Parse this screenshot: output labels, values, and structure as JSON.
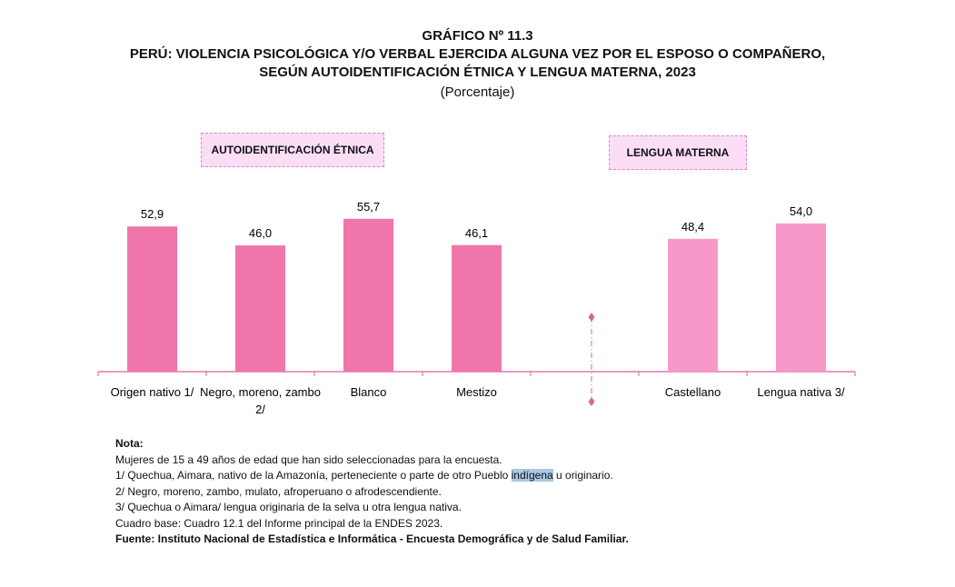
{
  "chart_data": {
    "type": "bar",
    "title_lines": [
      "GRÁFICO Nº 11.3",
      "PERÚ: VIOLENCIA PSICOLÓGICA Y/O VERBAL EJERCIDA ALGUNA VEZ POR EL ESPOSO O COMPAÑERO,",
      "SEGÚN AUTOIDENTIFICACIÓN ÉTNICA Y LENGUA MATERNA, 2023"
    ],
    "subtitle": "(Porcentaje)",
    "groups": [
      {
        "label": "AUTOIDENTIFICACIÓN ÉTNICA",
        "color": "#F075AA",
        "categories": [
          "Origen nativo 1/",
          "Negro, moreno, zambo 2/",
          "Blanco",
          "Mestizo"
        ],
        "values": [
          52.9,
          46.0,
          55.7,
          46.1
        ],
        "value_labels": [
          "52,9",
          "46,0",
          "55,7",
          "46,1"
        ]
      },
      {
        "label": "LENGUA MATERNA",
        "color": "#F799C8",
        "categories": [
          "Castellano",
          "Lengua nativa 3/"
        ],
        "values": [
          48.4,
          54.0
        ],
        "value_labels": [
          "48,4",
          "54,0"
        ]
      }
    ],
    "ylim": [
      0,
      60
    ],
    "grid": false,
    "xlabel": "",
    "ylabel": ""
  },
  "notes": {
    "heading": "Nota:",
    "lines": [
      "Mujeres de 15 a 49 años de edad que han sido seleccionadas para la encuesta.",
      "2/ Negro, moreno, zambo, mulato, afroperuano o afrodescendiente.",
      "3/ Quechua o Aimara/ lengua originaria de la selva u otra lengua nativa.",
      "Cuadro base: Cuadro 12.1 del Informe principal de la ENDES 2023."
    ],
    "line1_pre": "1/ Quechua, Aimara, nativo de la Amazonía, perteneciente o parte de otro Pueblo ",
    "line1_hl": "indígena",
    "line1_post": " u originario.",
    "source": "Fuente: Instituto Nacional de Estadística e Informática - Encuesta Demográfica y de Salud Familiar."
  }
}
